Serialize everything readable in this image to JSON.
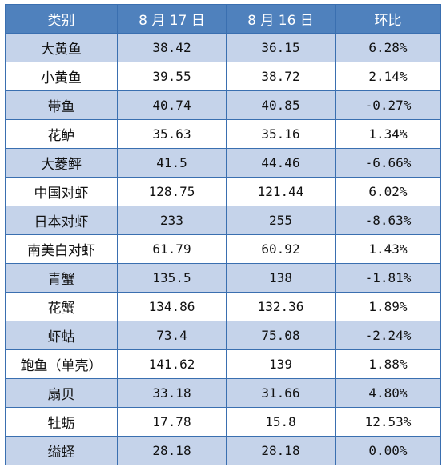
{
  "headers": [
    "类别",
    "8 月 17 日",
    "8 月 16 日",
    "环比"
  ],
  "rows": [
    {
      "name": "大黄鱼",
      "aug17": "38.42",
      "aug16": "36.15",
      "change": "6.28%"
    },
    {
      "name": "小黄鱼",
      "aug17": "39.55",
      "aug16": "38.72",
      "change": "2.14%"
    },
    {
      "name": "带鱼",
      "aug17": "40.74",
      "aug16": "40.85",
      "change": "-0.27%"
    },
    {
      "name": "花鲈",
      "aug17": "35.63",
      "aug16": "35.16",
      "change": "1.34%"
    },
    {
      "name": "大菱鲆",
      "aug17": "41.5",
      "aug16": "44.46",
      "change": "-6.66%"
    },
    {
      "name": "中国对虾",
      "aug17": "128.75",
      "aug16": "121.44",
      "change": "6.02%"
    },
    {
      "name": "日本对虾",
      "aug17": "233",
      "aug16": "255",
      "change": "-8.63%"
    },
    {
      "name": "南美白对虾",
      "aug17": "61.79",
      "aug16": "60.92",
      "change": "1.43%"
    },
    {
      "name": "青蟹",
      "aug17": "135.5",
      "aug16": "138",
      "change": "-1.81%"
    },
    {
      "name": "花蟹",
      "aug17": "134.86",
      "aug16": "132.36",
      "change": "1.89%"
    },
    {
      "name": "虾蛄",
      "aug17": "73.4",
      "aug16": "75.08",
      "change": "-2.24%"
    },
    {
      "name": "鲍鱼（单壳）",
      "aug17": "141.62",
      "aug16": "139",
      "change": "1.88%"
    },
    {
      "name": "扇贝",
      "aug17": "33.18",
      "aug16": "31.66",
      "change": "4.80%"
    },
    {
      "name": "牡蛎",
      "aug17": "17.78",
      "aug16": "15.8",
      "change": "12.53%"
    },
    {
      "name": "缢蛏",
      "aug17": "28.18",
      "aug16": "28.18",
      "change": "0.00%"
    }
  ],
  "colors": {
    "header_bg": "#4f81bd",
    "header_text": "#ffffff",
    "band_bg": "#c5d3ea",
    "plain_bg": "#ffffff",
    "border": "#3a6fb0"
  }
}
